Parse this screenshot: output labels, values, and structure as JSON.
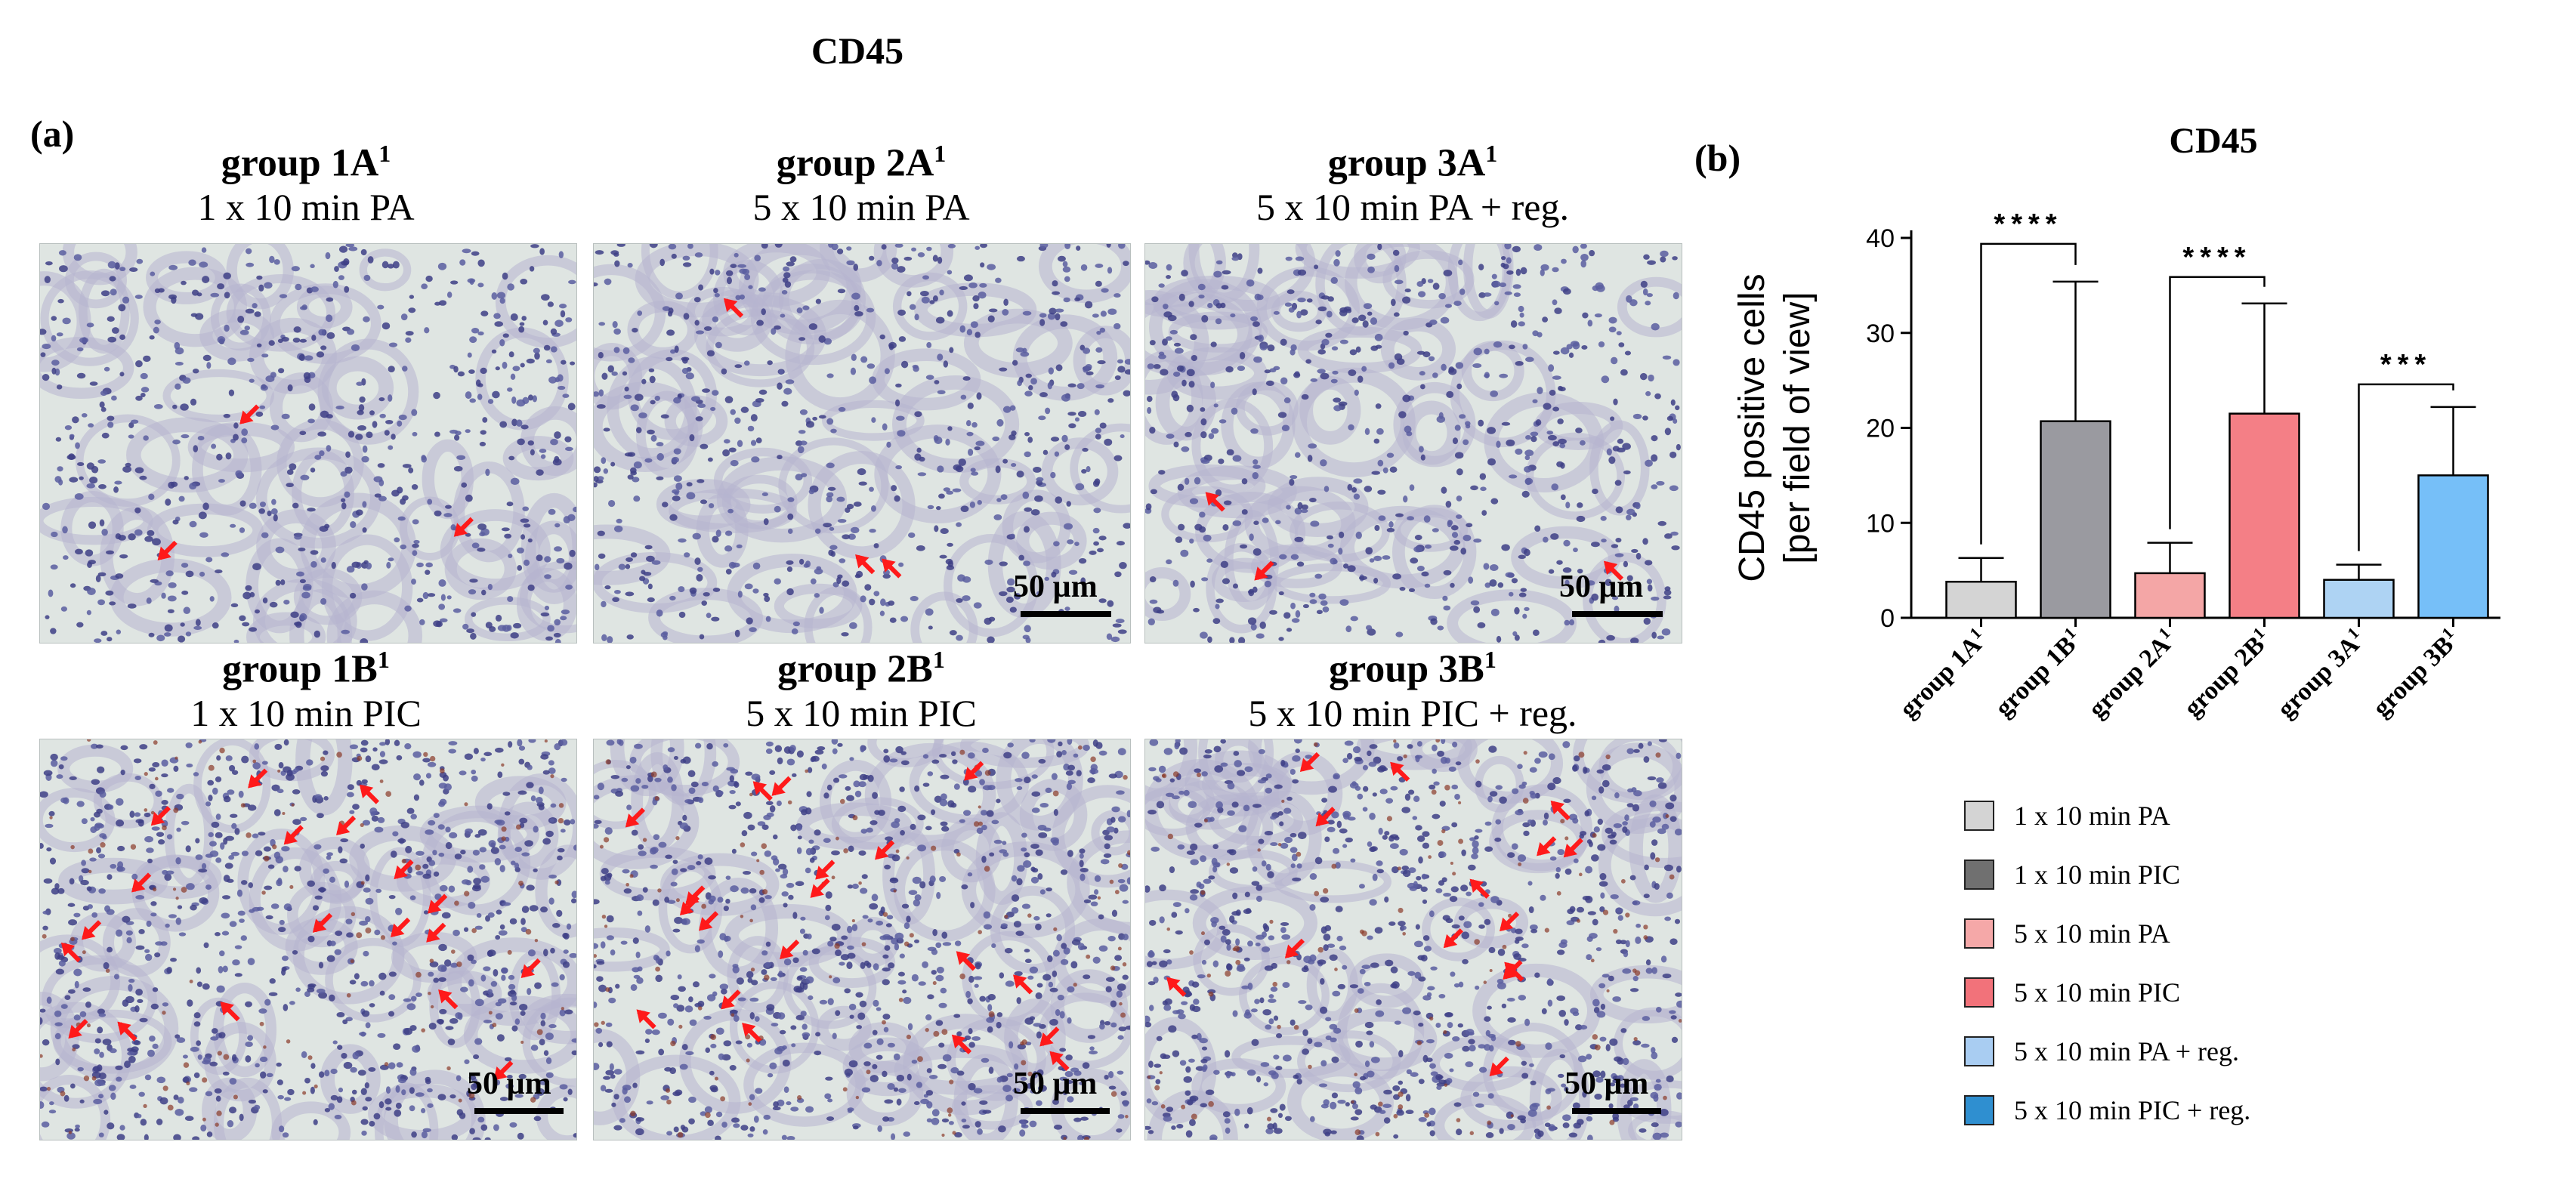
{
  "figure": {
    "main_title": "CD45",
    "panel_a_label": "(a)",
    "panel_b_label": "(b)",
    "scale_bar_label": "50 µm",
    "scale_bar_label_sb2": "50 μm"
  },
  "panels": [
    {
      "group": "group 1A",
      "sup": "1",
      "condition": "1 x 10 min PA",
      "stain": "light",
      "arrows": 3,
      "scale_bar": false
    },
    {
      "group": "group 2A",
      "sup": "1",
      "condition": "5 x 10 min PA",
      "stain": "light",
      "arrows": 3,
      "scale_bar": true
    },
    {
      "group": "group 3A",
      "sup": "1",
      "condition": "5 x 10 min PA + reg.",
      "stain": "light",
      "arrows": 3,
      "scale_bar": true
    },
    {
      "group": "group 1B",
      "sup": "1",
      "condition": "1 x 10 min PIC",
      "stain": "dense",
      "arrows": 19,
      "scale_bar": true
    },
    {
      "group": "group 2B",
      "sup": "1",
      "condition": "5 x 10 min PIC",
      "stain": "dense",
      "arrows": 19,
      "scale_bar": true
    },
    {
      "group": "group 3B",
      "sup": "1",
      "condition": "5 x 10 min PIC + reg.",
      "stain": "dense",
      "arrows": 14,
      "scale_bar": true
    }
  ],
  "chart_data": {
    "type": "bar",
    "title": "CD45",
    "ylabel_line1": "CD45 positive cells",
    "ylabel_line2": "[per field of view]",
    "ylim": [
      0,
      40
    ],
    "yticks": [
      0,
      10,
      20,
      30,
      40
    ],
    "categories": [
      "group 1A",
      "group 1B",
      "group 2A",
      "group 2B",
      "group 3A",
      "group 3B"
    ],
    "category_sup": "1",
    "values": [
      3.8,
      20.7,
      4.7,
      21.5,
      4.0,
      15.0
    ],
    "error_upper": [
      6.3,
      35.4,
      7.9,
      33.1,
      5.6,
      22.2
    ],
    "colors": [
      "#d4d4d4",
      "#9a9aa0",
      "#f4a6a6",
      "#f47f86",
      "#aed3f3",
      "#76bff8"
    ],
    "significance": [
      {
        "from": 0,
        "to": 1,
        "label": "****"
      },
      {
        "from": 2,
        "to": 3,
        "label": "****"
      },
      {
        "from": 4,
        "to": 5,
        "label": "***"
      }
    ],
    "legend": [
      {
        "label": "1 x 10 min PA",
        "color": "#d4d4d4"
      },
      {
        "label": "1 x 10 min PIC",
        "color": "#707070"
      },
      {
        "label": "5 x 10 min PA",
        "color": "#f5a8a8"
      },
      {
        "label": "5 x 10 min PIC",
        "color": "#f2727a"
      },
      {
        "label": "5 x 10 min PA + reg.",
        "color": "#a9cdf2"
      },
      {
        "label": "5 x 10 min PIC + reg.",
        "color": "#2f8fd0"
      }
    ]
  }
}
